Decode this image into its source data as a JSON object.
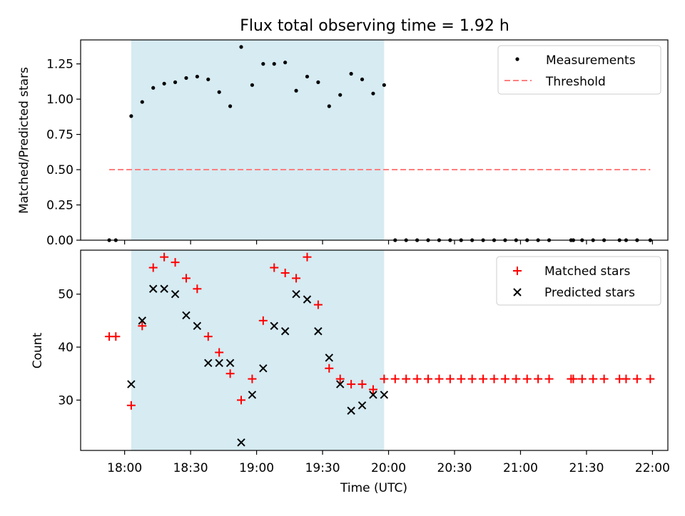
{
  "title": "Flux total observing time = 1.92 h",
  "colors": {
    "shade": "#add8e6",
    "measurement": "#000000",
    "threshold": "#ff7f7f",
    "matched": "#ff0000",
    "predicted": "#000000"
  },
  "chart_data": [
    {
      "type": "scatter",
      "ylabel": "Matched/Predicted stars",
      "xlim": [
        "17:40",
        "22:07"
      ],
      "ylim": [
        0,
        1.42
      ],
      "yticks": [
        0.0,
        0.25,
        0.5,
        0.75,
        1.0,
        1.25
      ],
      "ytick_labels": [
        "0.00",
        "0.25",
        "0.50",
        "0.75",
        "1.00",
        "1.25"
      ],
      "shaded_span": [
        "18:03",
        "19:58"
      ],
      "legend": {
        "position": "top-right",
        "entries": [
          {
            "label": "Measurements"
          },
          {
            "label": "Threshold"
          }
        ]
      },
      "threshold": {
        "name": "Threshold",
        "y": 0.5,
        "x_range": [
          "17:53",
          "21:59"
        ]
      },
      "series": [
        {
          "name": "Measurements",
          "x": [
            "17:53",
            "17:56",
            "18:03",
            "18:08",
            "18:13",
            "18:18",
            "18:23",
            "18:28",
            "18:33",
            "18:38",
            "18:43",
            "18:48",
            "18:53",
            "18:58",
            "19:03",
            "19:08",
            "19:13",
            "19:18",
            "19:23",
            "19:28",
            "19:33",
            "19:38",
            "19:43",
            "19:48",
            "19:53",
            "19:58",
            "20:03",
            "20:08",
            "20:13",
            "20:18",
            "20:23",
            "20:28",
            "20:33",
            "20:38",
            "20:43",
            "20:48",
            "20:53",
            "20:58",
            "21:03",
            "21:08",
            "21:13",
            "21:23",
            "21:24",
            "21:28",
            "21:33",
            "21:38",
            "21:45",
            "21:48",
            "21:53",
            "21:59"
          ],
          "y": [
            0,
            0,
            0.88,
            0.98,
            1.08,
            1.11,
            1.12,
            1.15,
            1.16,
            1.14,
            1.05,
            0.95,
            1.37,
            1.1,
            1.25,
            1.25,
            1.26,
            1.06,
            1.16,
            1.12,
            0.95,
            1.03,
            1.18,
            1.14,
            1.04,
            1.1,
            0,
            0,
            0,
            0,
            0,
            0,
            0,
            0,
            0,
            0,
            0,
            0,
            0,
            0,
            0,
            0,
            0,
            0,
            0,
            0,
            0,
            0,
            0,
            0
          ]
        }
      ]
    },
    {
      "type": "scatter",
      "xlabel": "Time (UTC)",
      "ylabel": "Count",
      "xlim": [
        "17:40",
        "22:07"
      ],
      "ylim": [
        20.5,
        58.3
      ],
      "yticks": [
        30,
        40,
        50
      ],
      "xticks": [
        "18:00",
        "18:30",
        "19:00",
        "19:30",
        "20:00",
        "20:30",
        "21:00",
        "21:30",
        "22:00"
      ],
      "shaded_span": [
        "18:03",
        "19:58"
      ],
      "legend": {
        "position": "top-right",
        "entries": [
          {
            "label": "Matched stars"
          },
          {
            "label": "Predicted stars"
          }
        ]
      },
      "series": [
        {
          "name": "Matched stars",
          "x": [
            "17:53",
            "17:56",
            "18:03",
            "18:08",
            "18:13",
            "18:18",
            "18:23",
            "18:28",
            "18:33",
            "18:38",
            "18:43",
            "18:48",
            "18:53",
            "18:58",
            "19:03",
            "19:08",
            "19:13",
            "19:18",
            "19:23",
            "19:28",
            "19:33",
            "19:38",
            "19:43",
            "19:48",
            "19:53",
            "19:58",
            "20:03",
            "20:08",
            "20:13",
            "20:18",
            "20:23",
            "20:28",
            "20:33",
            "20:38",
            "20:43",
            "20:48",
            "20:53",
            "20:58",
            "21:03",
            "21:08",
            "21:13",
            "21:23",
            "21:24",
            "21:28",
            "21:33",
            "21:38",
            "21:45",
            "21:48",
            "21:53",
            "21:59"
          ],
          "y": [
            42,
            42,
            29,
            44,
            55,
            57,
            56,
            53,
            51,
            42,
            39,
            35,
            30,
            34,
            45,
            55,
            54,
            53,
            57,
            48,
            36,
            34,
            33,
            33,
            32,
            34,
            34,
            34,
            34,
            34,
            34,
            34,
            34,
            34,
            34,
            34,
            34,
            34,
            34,
            34,
            34,
            34,
            34,
            34,
            34,
            34,
            34,
            34,
            34,
            34
          ]
        },
        {
          "name": "Predicted stars",
          "x": [
            "18:03",
            "18:08",
            "18:13",
            "18:18",
            "18:23",
            "18:28",
            "18:33",
            "18:38",
            "18:43",
            "18:48",
            "18:53",
            "18:58",
            "19:03",
            "19:08",
            "19:13",
            "19:18",
            "19:23",
            "19:28",
            "19:33",
            "19:38",
            "19:43",
            "19:48",
            "19:53",
            "19:58"
          ],
          "y": [
            33,
            45,
            51,
            51,
            50,
            46,
            44,
            37,
            37,
            37,
            22,
            31,
            36,
            44,
            43,
            50,
            49,
            43,
            38,
            33,
            28,
            29,
            31,
            31
          ]
        }
      ]
    }
  ]
}
